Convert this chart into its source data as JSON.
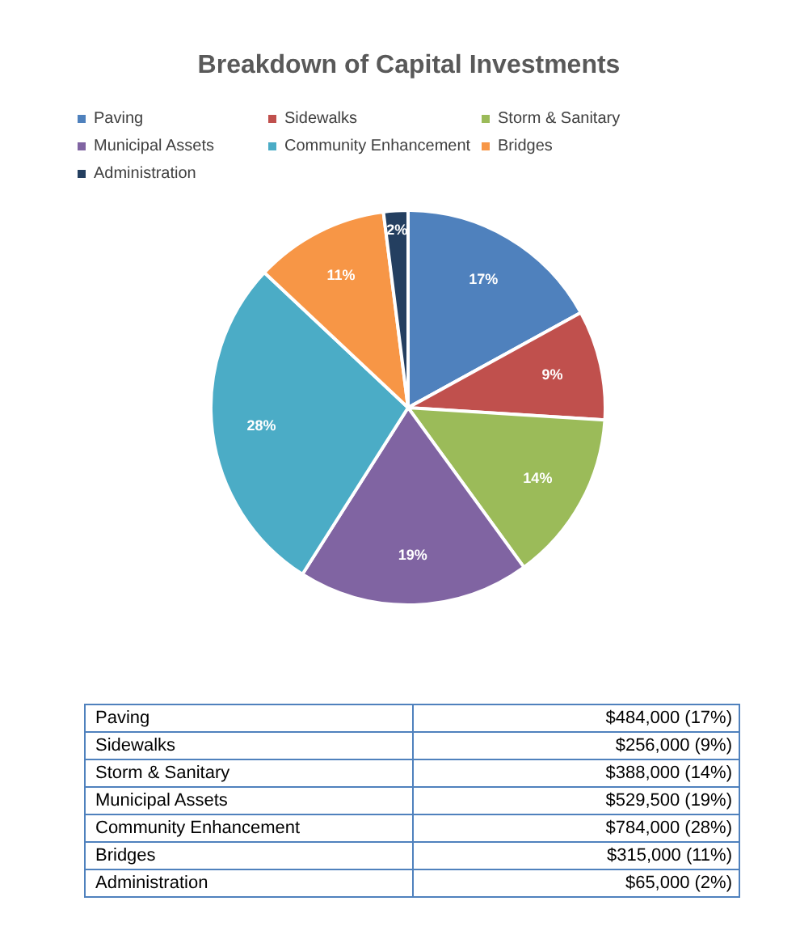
{
  "chart_data": {
    "type": "pie",
    "title": "Breakdown of Capital Investments",
    "categories": [
      "Paving",
      "Sidewalks",
      "Storm & Sanitary",
      "Municipal Assets",
      "Community Enhancement",
      "Bridges",
      "Administration"
    ],
    "values": [
      17,
      9,
      14,
      19,
      28,
      11,
      2
    ],
    "colors": [
      "#4f81bd",
      "#c0504d",
      "#9bbb59",
      "#8064a2",
      "#4bacc6",
      "#f79646",
      "#243f60"
    ],
    "value_labels": [
      "17%",
      "9%",
      "14%",
      "19%",
      "28%",
      "11%",
      "2%"
    ],
    "legend": "top",
    "annotations": [
      "$484,000 (17%)",
      "$256,000 (9%)",
      "$388,000 (14%)",
      "$529,500 (19%)",
      "$784,000 (28%)",
      "$315,000 (11%)",
      "$65,000 (2%)"
    ]
  }
}
